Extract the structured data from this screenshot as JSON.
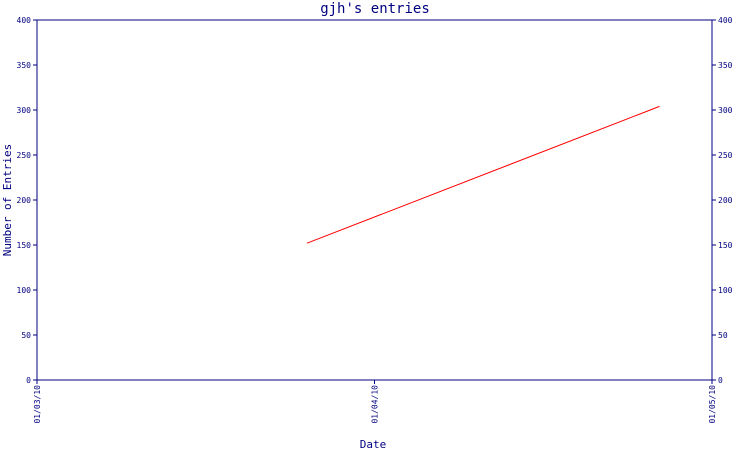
{
  "chart_data": {
    "type": "line",
    "title": "gjh's entries",
    "xlabel": "Date",
    "ylabel": "Number of Entries",
    "x_ticks": [
      "01/03/10",
      "01/04/10",
      "01/05/10"
    ],
    "y_ticks": [
      0,
      50,
      100,
      150,
      200,
      250,
      300,
      350,
      400
    ],
    "xlim": [
      "2010-01-03",
      "2010-01-05"
    ],
    "ylim": [
      0,
      400
    ],
    "grid": false,
    "right_axis": true,
    "series": [
      {
        "x": [
          "2010-01-03T19:12",
          "2010-01-04T20:16"
        ],
        "y": [
          152,
          304
        ],
        "color": "#ff0000"
      }
    ],
    "colors": {
      "axis": "#000080",
      "text": "#000080",
      "line": "#ff0000",
      "background": "#ffffff"
    }
  }
}
